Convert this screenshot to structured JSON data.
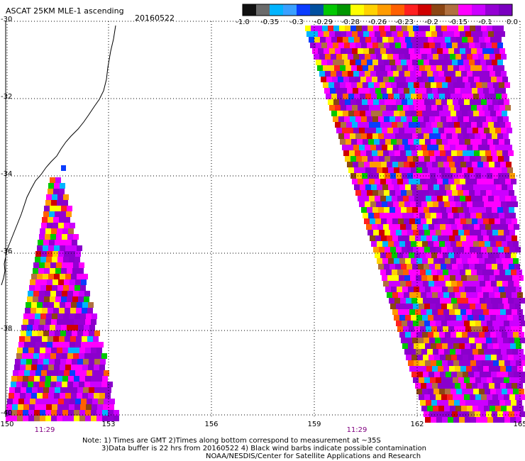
{
  "title": "ASCAT 25KM MLE-1 ascending",
  "date": "20160522",
  "colorbar": {
    "ticks": [
      "-1.0",
      "-0.35",
      "-0.3",
      "-0.29",
      "-0.28",
      "-0.26",
      "-0.23",
      "-0.2",
      "-0.15",
      "-0.1",
      "0.0"
    ],
    "colors": [
      "#111111",
      "#6a6a6a",
      "#00b4ff",
      "#3aa0ff",
      "#0a3cff",
      "#0050a0",
      "#00c800",
      "#009600",
      "#ffff00",
      "#ffd200",
      "#ff9c00",
      "#ff6000",
      "#ff2020",
      "#d00000",
      "#8b4513",
      "#b07040",
      "#ff00ff",
      "#cc00ff",
      "#9400d3",
      "#7a00c0"
    ]
  },
  "axes": {
    "lat_ticks": [
      "-30",
      "-32",
      "-34",
      "-36",
      "-38",
      "-40"
    ],
    "lon_ticks": [
      "150",
      "153",
      "156",
      "159",
      "162",
      "165"
    ]
  },
  "pass_times": [
    "11:29",
    "11:29"
  ],
  "notes": [
    "Note: 1) Times are GMT 2)Times along bottom correspond to measurement at ~35S",
    "3)Data buffer is 22 hrs from 20160522 4) Black wind barbs indicate possible contamination",
    "NOAA/NESDIS/Center for Satellite Applications and Research"
  ]
}
